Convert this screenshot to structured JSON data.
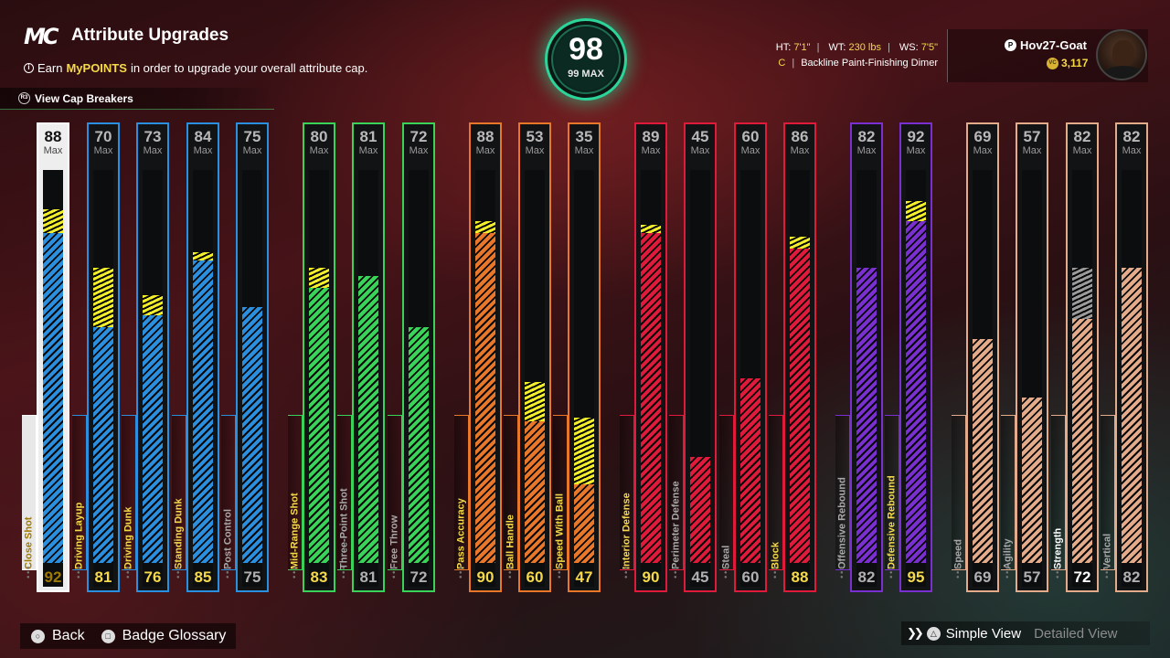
{
  "header": {
    "logo": "MC",
    "title": "Attribute Upgrades",
    "subtitle_prefix": "Earn ",
    "subtitle_highlight": "MyPOINTS",
    "subtitle_suffix": " in order to upgrade your overall attribute cap.",
    "cap_breakers_label": "View Cap Breakers",
    "cap_breakers_button": "R3"
  },
  "overall": {
    "value": "98",
    "max_label": "99 MAX",
    "accent": "#2cd49a"
  },
  "player": {
    "ht_label": "HT:",
    "ht": "7'1\"",
    "wt_label": "WT:",
    "wt": "230 lbs",
    "ws_label": "WS:",
    "ws": "7'5\"",
    "position": "C",
    "archetype": "Backline Paint-Finishing Dimer",
    "gamertag": "Hov27-Goat",
    "vc": "3,117"
  },
  "attributes": [
    {
      "name": "Close Shot",
      "max": "88",
      "current": "92",
      "color": "#2b8fe0",
      "fill": 0.84,
      "upg": 0.06,
      "selected": true,
      "style": "yellow"
    },
    {
      "name": "Driving Layup",
      "max": "70",
      "current": "81",
      "color": "#2b8fe0",
      "fill": 0.6,
      "upg": 0.15,
      "style": "yellow"
    },
    {
      "name": "Driving Dunk",
      "max": "73",
      "current": "76",
      "color": "#2b8fe0",
      "fill": 0.63,
      "upg": 0.05,
      "style": "yellow"
    },
    {
      "name": "Standing Dunk",
      "max": "84",
      "current": "85",
      "color": "#2b8fe0",
      "fill": 0.77,
      "upg": 0.02,
      "style": "yellow"
    },
    {
      "name": "Post Control",
      "max": "75",
      "current": "75",
      "color": "#2b8fe0",
      "fill": 0.65,
      "upg": 0,
      "style": "gray"
    },
    {
      "name": "Mid-Range Shot",
      "max": "80",
      "current": "83",
      "color": "#3ad35a",
      "fill": 0.7,
      "upg": 0.05,
      "style": "yellow"
    },
    {
      "name": "Three-Point Shot",
      "max": "81",
      "current": "81",
      "color": "#3ad35a",
      "fill": 0.73,
      "upg": 0,
      "style": "gray"
    },
    {
      "name": "Free Throw",
      "max": "72",
      "current": "72",
      "color": "#3ad35a",
      "fill": 0.6,
      "upg": 0,
      "style": "gray"
    },
    {
      "name": "Pass Accuracy",
      "max": "88",
      "current": "90",
      "color": "#e8772a",
      "fill": 0.84,
      "upg": 0.03,
      "style": "yellow"
    },
    {
      "name": "Ball Handle",
      "max": "53",
      "current": "60",
      "color": "#e8772a",
      "fill": 0.36,
      "upg": 0.1,
      "style": "yellow"
    },
    {
      "name": "Speed With Ball",
      "max": "35",
      "current": "47",
      "color": "#e8772a",
      "fill": 0.2,
      "upg": 0.17,
      "style": "yellow"
    },
    {
      "name": "Interior Defense",
      "max": "89",
      "current": "90",
      "color": "#e01a3a",
      "fill": 0.84,
      "upg": 0.02,
      "style": "yellow"
    },
    {
      "name": "Perimeter Defense",
      "max": "45",
      "current": "45",
      "color": "#e01a3a",
      "fill": 0.27,
      "upg": 0,
      "style": "gray"
    },
    {
      "name": "Steal",
      "max": "60",
      "current": "60",
      "color": "#e01a3a",
      "fill": 0.47,
      "upg": 0,
      "style": "gray"
    },
    {
      "name": "Block",
      "max": "86",
      "current": "88",
      "color": "#e01a3a",
      "fill": 0.8,
      "upg": 0.03,
      "style": "yellow"
    },
    {
      "name": "Offensive Rebound",
      "max": "82",
      "current": "82",
      "color": "#7a2fd0",
      "fill": 0.75,
      "upg": 0,
      "style": "gray"
    },
    {
      "name": "Defensive Rebound",
      "max": "92",
      "current": "95",
      "color": "#7a2fd0",
      "fill": 0.87,
      "upg": 0.05,
      "style": "yellow"
    },
    {
      "name": "Speed",
      "max": "69",
      "current": "69",
      "color": "#e3ab8a",
      "fill": 0.57,
      "upg": 0,
      "style": "gray"
    },
    {
      "name": "Agility",
      "max": "57",
      "current": "57",
      "color": "#e3ab8a",
      "fill": 0.42,
      "upg": 0,
      "style": "gray"
    },
    {
      "name": "Strength",
      "max": "82",
      "current": "72",
      "color": "#e3ab8a",
      "fill": 0.62,
      "upg": 0.13,
      "upgGray": true,
      "style": "white"
    },
    {
      "name": "Vertical",
      "max": "82",
      "current": "82",
      "color": "#e3ab8a",
      "fill": 0.75,
      "upg": 0,
      "style": "gray"
    }
  ],
  "max_label": "Max",
  "footer": {
    "back_label": "Back",
    "glossary_label": "Badge Glossary",
    "simple_view": "Simple View",
    "detailed_view": "Detailed View"
  }
}
